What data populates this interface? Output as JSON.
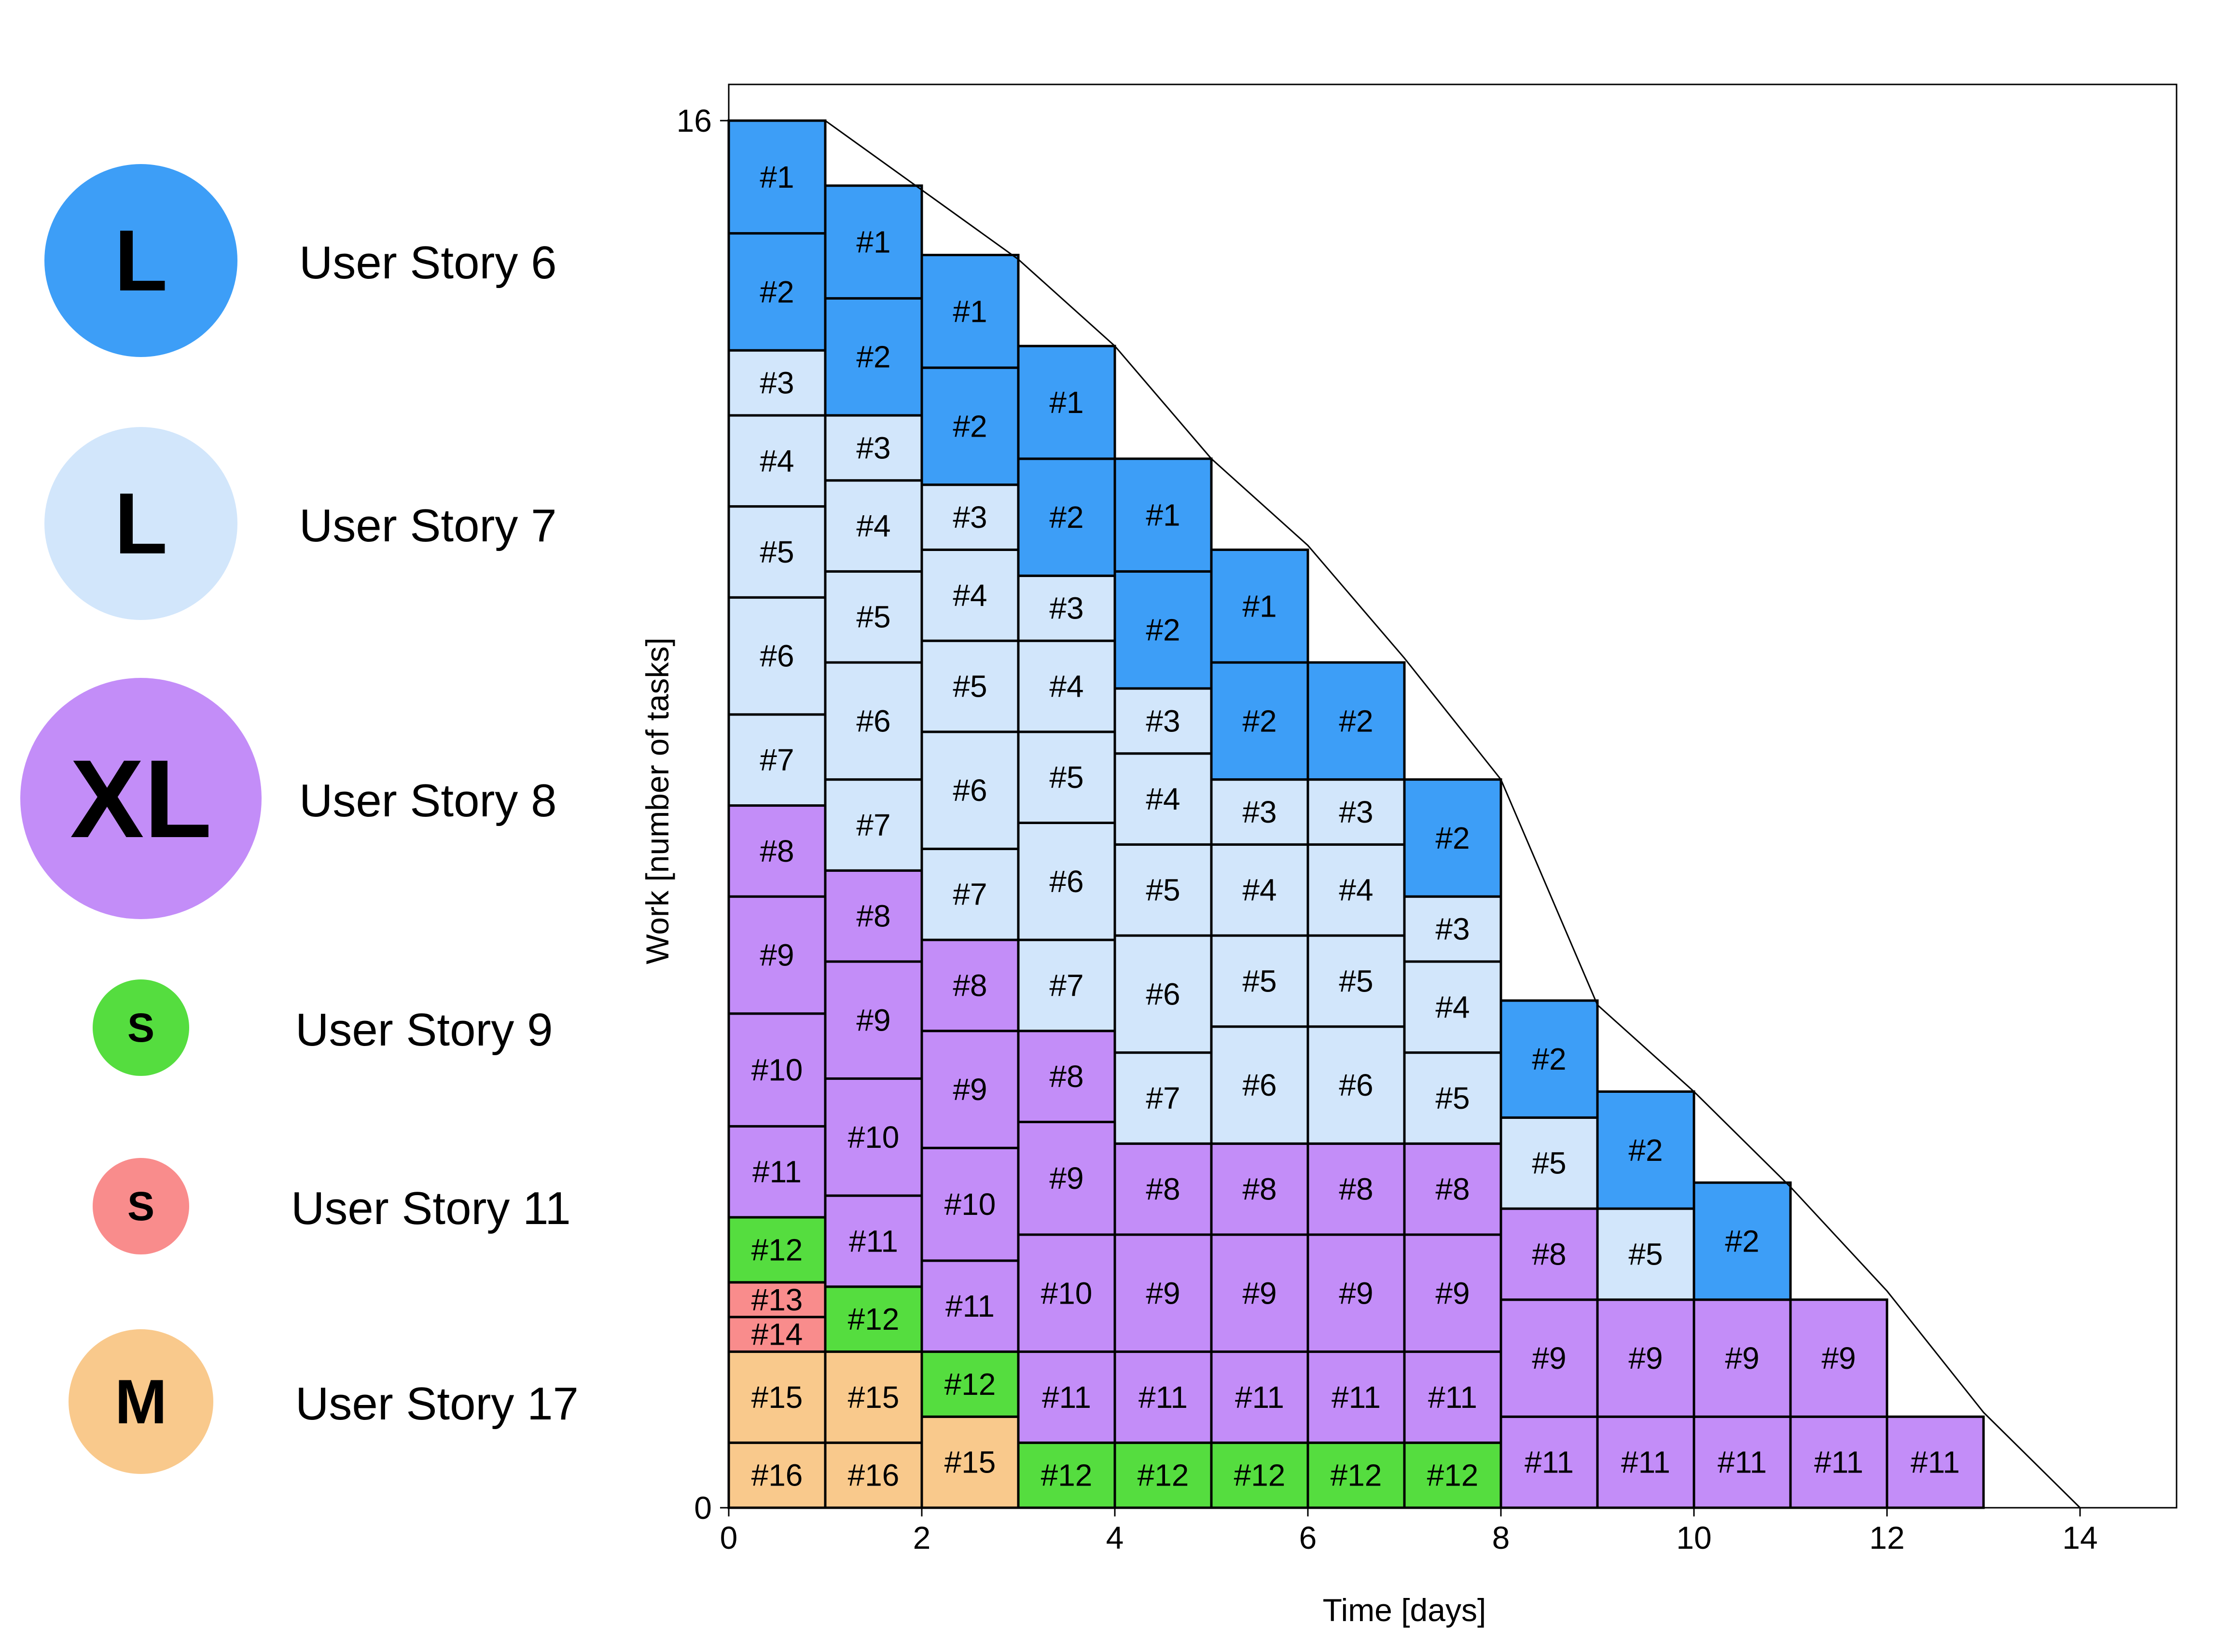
{
  "legend": [
    {
      "size": "L",
      "label": "User Story 6",
      "color": "#3d9ef7"
    },
    {
      "size": "L",
      "label": "User Story 7",
      "color": "#d2e6fb"
    },
    {
      "size": "XL",
      "label": "User Story 8",
      "color": "#c38df8"
    },
    {
      "size": "S",
      "label": "User Story 9",
      "color": "#55dd3f"
    },
    {
      "size": "S",
      "label": "User Story 11",
      "color": "#f98c8c"
    },
    {
      "size": "M",
      "label": "User Story 17",
      "color": "#f9c98c"
    }
  ],
  "chart_data": {
    "type": "stacked-block",
    "xlabel": "Time [days]",
    "ylabel": "Work [number of tasks]",
    "xlim": [
      0,
      15
    ],
    "ylim": [
      0,
      16
    ],
    "xticks": [
      0,
      2,
      4,
      6,
      8,
      10,
      12,
      14
    ],
    "yticks": [
      0,
      16
    ],
    "colors": {
      "story6": "#3d9ef7",
      "story7": "#d2e6fb",
      "story8": "#c38df8",
      "story9": "#55dd3f",
      "story11": "#f98c8c",
      "story17": "#f9c98c"
    },
    "trend_line": [
      [
        1,
        16
      ],
      [
        2,
        15.2
      ],
      [
        3,
        14.4
      ],
      [
        4,
        13.4
      ],
      [
        5,
        12.1
      ],
      [
        6,
        11.1
      ],
      [
        7,
        9.8
      ],
      [
        8,
        8.4
      ],
      [
        9,
        5.8
      ],
      [
        10,
        4.8
      ],
      [
        11,
        3.7
      ],
      [
        12,
        2.5
      ],
      [
        13,
        1.1
      ],
      [
        14,
        0
      ]
    ],
    "columns": [
      {
        "blocks": [
          {
            "label": "#16",
            "story": "story17",
            "h": 0.75
          },
          {
            "label": "#15",
            "story": "story17",
            "h": 1.05
          },
          {
            "label": "#14",
            "story": "story11",
            "h": 0.4
          },
          {
            "label": "#13",
            "story": "story11",
            "h": 0.4
          },
          {
            "label": "#12",
            "story": "story9",
            "h": 0.75
          },
          {
            "label": "#11",
            "story": "story8",
            "h": 1.05
          },
          {
            "label": "#10",
            "story": "story8",
            "h": 1.3
          },
          {
            "label": "#9",
            "story": "story8",
            "h": 1.35
          },
          {
            "label": "#8",
            "story": "story8",
            "h": 1.05
          },
          {
            "label": "#7",
            "story": "story7",
            "h": 1.05
          },
          {
            "label": "#6",
            "story": "story7",
            "h": 1.35
          },
          {
            "label": "#5",
            "story": "story7",
            "h": 1.05
          },
          {
            "label": "#4",
            "story": "story7",
            "h": 1.05
          },
          {
            "label": "#3",
            "story": "story7",
            "h": 0.75
          },
          {
            "label": "#2",
            "story": "story6",
            "h": 1.35
          },
          {
            "label": "#1",
            "story": "story6",
            "h": 1.3
          }
        ]
      },
      {
        "blocks": [
          {
            "label": "#16",
            "story": "story17",
            "h": 0.75
          },
          {
            "label": "#15",
            "story": "story17",
            "h": 1.05
          },
          {
            "label": "#12",
            "story": "story9",
            "h": 0.75
          },
          {
            "label": "#11",
            "story": "story8",
            "h": 1.05
          },
          {
            "label": "#10",
            "story": "story8",
            "h": 1.35
          },
          {
            "label": "#9",
            "story": "story8",
            "h": 1.35
          },
          {
            "label": "#8",
            "story": "story8",
            "h": 1.05
          },
          {
            "label": "#7",
            "story": "story7",
            "h": 1.05
          },
          {
            "label": "#6",
            "story": "story7",
            "h": 1.35
          },
          {
            "label": "#5",
            "story": "story7",
            "h": 1.05
          },
          {
            "label": "#4",
            "story": "story7",
            "h": 1.05
          },
          {
            "label": "#3",
            "story": "story7",
            "h": 0.75
          },
          {
            "label": "#2",
            "story": "story6",
            "h": 1.35
          },
          {
            "label": "#1",
            "story": "story6",
            "h": 1.3
          }
        ]
      },
      {
        "blocks": [
          {
            "label": "#15",
            "story": "story17",
            "h": 1.05
          },
          {
            "label": "#12",
            "story": "story9",
            "h": 0.75
          },
          {
            "label": "#11",
            "story": "story8",
            "h": 1.05
          },
          {
            "label": "#10",
            "story": "story8",
            "h": 1.3
          },
          {
            "label": "#9",
            "story": "story8",
            "h": 1.35
          },
          {
            "label": "#8",
            "story": "story8",
            "h": 1.05
          },
          {
            "label": "#7",
            "story": "story7",
            "h": 1.05
          },
          {
            "label": "#6",
            "story": "story7",
            "h": 1.35
          },
          {
            "label": "#5",
            "story": "story7",
            "h": 1.05
          },
          {
            "label": "#4",
            "story": "story7",
            "h": 1.05
          },
          {
            "label": "#3",
            "story": "story7",
            "h": 0.75
          },
          {
            "label": "#2",
            "story": "story6",
            "h": 1.35
          },
          {
            "label": "#1",
            "story": "story6",
            "h": 1.3
          }
        ]
      },
      {
        "blocks": [
          {
            "label": "#12",
            "story": "story9",
            "h": 0.75
          },
          {
            "label": "#11",
            "story": "story8",
            "h": 1.05
          },
          {
            "label": "#10",
            "story": "story8",
            "h": 1.35
          },
          {
            "label": "#9",
            "story": "story8",
            "h": 1.3
          },
          {
            "label": "#8",
            "story": "story8",
            "h": 1.05
          },
          {
            "label": "#7",
            "story": "story7",
            "h": 1.05
          },
          {
            "label": "#6",
            "story": "story7",
            "h": 1.35
          },
          {
            "label": "#5",
            "story": "story7",
            "h": 1.05
          },
          {
            "label": "#4",
            "story": "story7",
            "h": 1.05
          },
          {
            "label": "#3",
            "story": "story7",
            "h": 0.75
          },
          {
            "label": "#2",
            "story": "story6",
            "h": 1.35
          },
          {
            "label": "#1",
            "story": "story6",
            "h": 1.3
          }
        ]
      },
      {
        "blocks": [
          {
            "label": "#12",
            "story": "story9",
            "h": 0.75
          },
          {
            "label": "#11",
            "story": "story8",
            "h": 1.05
          },
          {
            "label": "#9",
            "story": "story8",
            "h": 1.35
          },
          {
            "label": "#8",
            "story": "story8",
            "h": 1.05
          },
          {
            "label": "#7",
            "story": "story7",
            "h": 1.05
          },
          {
            "label": "#6",
            "story": "story7",
            "h": 1.35
          },
          {
            "label": "#5",
            "story": "story7",
            "h": 1.05
          },
          {
            "label": "#4",
            "story": "story7",
            "h": 1.05
          },
          {
            "label": "#3",
            "story": "story7",
            "h": 0.75
          },
          {
            "label": "#2",
            "story": "story6",
            "h": 1.35
          },
          {
            "label": "#1",
            "story": "story6",
            "h": 1.3
          }
        ]
      },
      {
        "blocks": [
          {
            "label": "#12",
            "story": "story9",
            "h": 0.75
          },
          {
            "label": "#11",
            "story": "story8",
            "h": 1.05
          },
          {
            "label": "#9",
            "story": "story8",
            "h": 1.35
          },
          {
            "label": "#8",
            "story": "story8",
            "h": 1.05
          },
          {
            "label": "#6",
            "story": "story7",
            "h": 1.35
          },
          {
            "label": "#5",
            "story": "story7",
            "h": 1.05
          },
          {
            "label": "#4",
            "story": "story7",
            "h": 1.05
          },
          {
            "label": "#3",
            "story": "story7",
            "h": 0.75
          },
          {
            "label": "#2",
            "story": "story6",
            "h": 1.35
          },
          {
            "label": "#1",
            "story": "story6",
            "h": 1.3
          }
        ]
      },
      {
        "blocks": [
          {
            "label": "#12",
            "story": "story9",
            "h": 0.75
          },
          {
            "label": "#11",
            "story": "story8",
            "h": 1.05
          },
          {
            "label": "#9",
            "story": "story8",
            "h": 1.35
          },
          {
            "label": "#8",
            "story": "story8",
            "h": 1.05
          },
          {
            "label": "#6",
            "story": "story7",
            "h": 1.35
          },
          {
            "label": "#5",
            "story": "story7",
            "h": 1.05
          },
          {
            "label": "#4",
            "story": "story7",
            "h": 1.05
          },
          {
            "label": "#3",
            "story": "story7",
            "h": 0.75
          },
          {
            "label": "#2",
            "story": "story6",
            "h": 1.35
          }
        ]
      },
      {
        "blocks": [
          {
            "label": "#12",
            "story": "story9",
            "h": 0.75
          },
          {
            "label": "#11",
            "story": "story8",
            "h": 1.05
          },
          {
            "label": "#9",
            "story": "story8",
            "h": 1.35
          },
          {
            "label": "#8",
            "story": "story8",
            "h": 1.05
          },
          {
            "label": "#5",
            "story": "story7",
            "h": 1.05
          },
          {
            "label": "#4",
            "story": "story7",
            "h": 1.05
          },
          {
            "label": "#3",
            "story": "story7",
            "h": 0.75
          },
          {
            "label": "#2",
            "story": "story6",
            "h": 1.35
          }
        ]
      },
      {
        "blocks": [
          {
            "label": "#11",
            "story": "story8",
            "h": 1.05
          },
          {
            "label": "#9",
            "story": "story8",
            "h": 1.35
          },
          {
            "label": "#8",
            "story": "story8",
            "h": 1.05
          },
          {
            "label": "#5",
            "story": "story7",
            "h": 1.05
          },
          {
            "label": "#2",
            "story": "story6",
            "h": 1.35
          }
        ]
      },
      {
        "blocks": [
          {
            "label": "#11",
            "story": "story8",
            "h": 1.05
          },
          {
            "label": "#9",
            "story": "story8",
            "h": 1.35
          },
          {
            "label": "#5",
            "story": "story7",
            "h": 1.05
          },
          {
            "label": "#2",
            "story": "story6",
            "h": 1.35
          }
        ]
      },
      {
        "blocks": [
          {
            "label": "#11",
            "story": "story8",
            "h": 1.05
          },
          {
            "label": "#9",
            "story": "story8",
            "h": 1.35
          },
          {
            "label": "#2",
            "story": "story6",
            "h": 1.35
          }
        ]
      },
      {
        "blocks": [
          {
            "label": "#11",
            "story": "story8",
            "h": 1.05
          },
          {
            "label": "#9",
            "story": "story8",
            "h": 1.35
          }
        ]
      },
      {
        "blocks": [
          {
            "label": "#11",
            "story": "story8",
            "h": 1.05
          }
        ]
      }
    ]
  }
}
